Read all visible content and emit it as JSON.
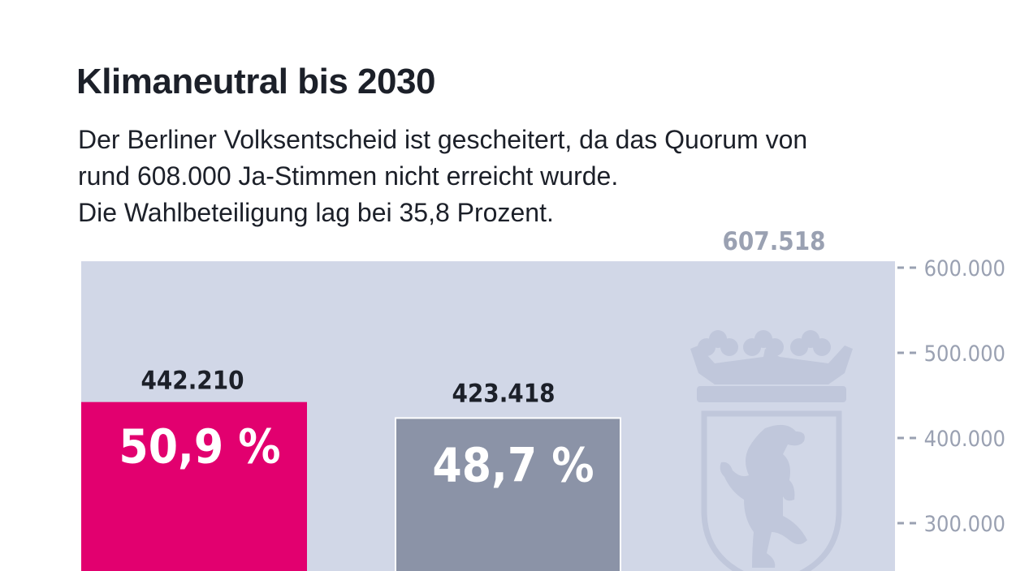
{
  "header": {
    "title": "Klimaneutral bis 2030",
    "subtitle_lines": [
      "Der Berliner Volksentscheid ist gescheitert, da das Quorum von",
      "rund 608.000 Ja-Stimmen nicht erreicht wurde.",
      "Die Wahlbeteiligung lag bei 35,8 Prozent."
    ]
  },
  "chart_data": {
    "type": "bar",
    "title": "Klimaneutral bis 2030",
    "categories": [
      "",
      "",
      ""
    ],
    "values": [
      442210,
      423418,
      607518
    ],
    "value_labels": [
      "442.210",
      "423.418",
      "607.518"
    ],
    "percent_labels": [
      "50,9 %",
      "48,7 %",
      ""
    ],
    "ylim_visible": [
      260000,
      610000
    ],
    "yticks": [
      600000,
      500000,
      400000,
      300000
    ],
    "ytick_labels": [
      "600.000",
      "500.000",
      "400.000",
      "300.000"
    ],
    "grid": false,
    "colors": {
      "bar_yes": "#e2006f",
      "bar_no": "#8b93a7",
      "quorum_area": "#d1d7e7",
      "quorum_label": "#9aa1b2",
      "tick_label": "#9aa1b2",
      "text": "#1c2029",
      "emblem": "#c0c7db"
    },
    "emblem_icon": "berlin-coat-of-arms-icon"
  }
}
